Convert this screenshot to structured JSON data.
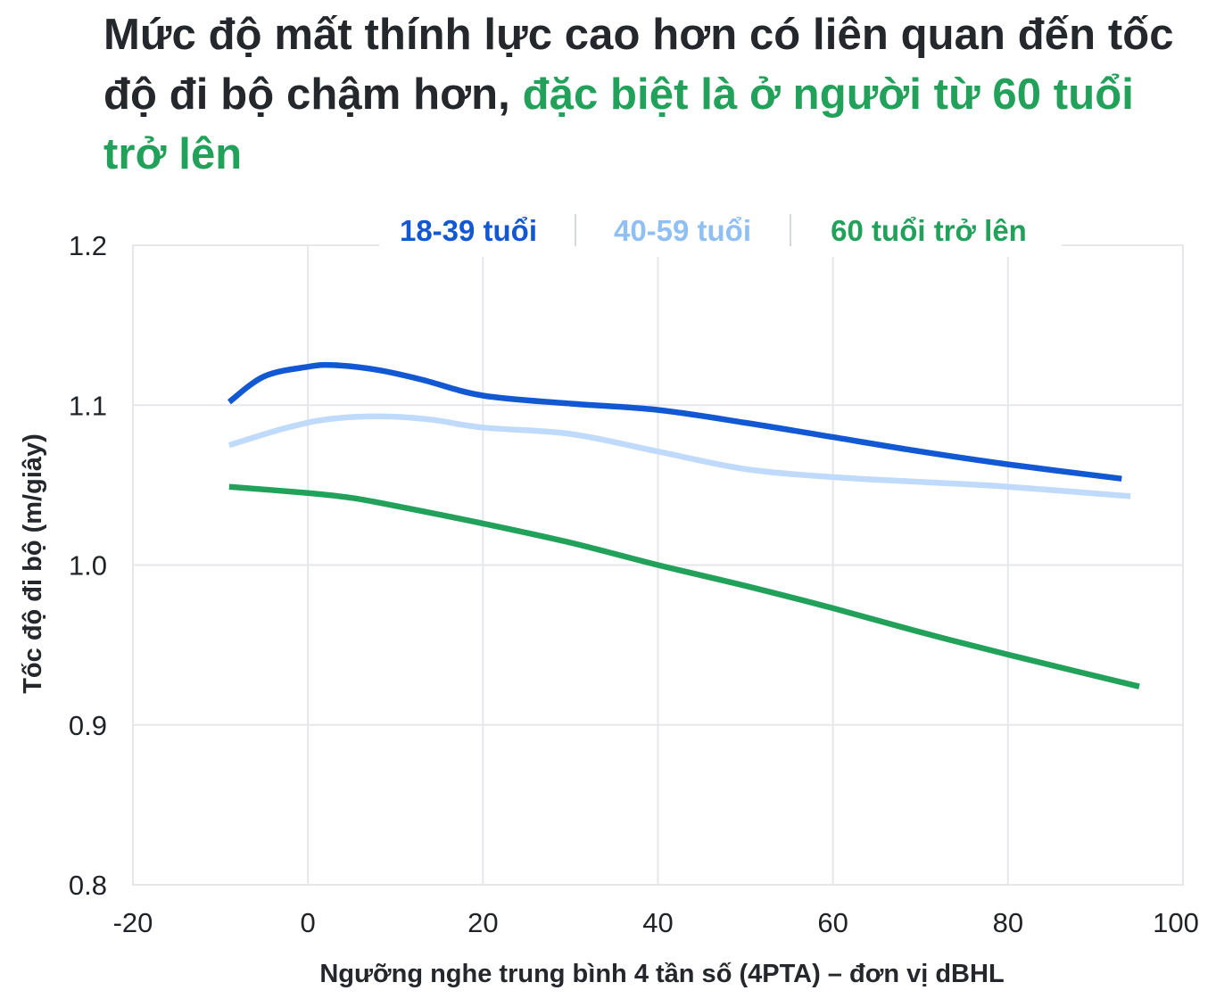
{
  "title": {
    "main": "Mức độ mất thính lực cao hơn có liên quan đến tốc độ đi bộ chậm hơn,",
    "highlight": "đặc biệt là ở người từ 60 tuổi trở lên"
  },
  "colors": {
    "title_text": "#24272c",
    "accent": "#21a159",
    "series_18_39": "#1358d3",
    "series_40_59": "#bfdafb",
    "series_60_plus": "#21a159",
    "legend_40_59_text": "#8fbff3",
    "grid": "#e5e7eb",
    "axis_text": "#1f2328"
  },
  "chart_data": {
    "type": "line",
    "xlabel": "Ngưỡng nghe trung bình 4 tần số (4PTA) – đơn vị dBHL",
    "ylabel": "Tốc độ đi bộ (m/giây)",
    "xlim": [
      -20,
      100
    ],
    "ylim": [
      0.8,
      1.2
    ],
    "x_ticks": [
      "-20",
      "0",
      "20",
      "40",
      "60",
      "80",
      "100"
    ],
    "y_ticks": [
      "0.8",
      "0.9",
      "1.0",
      "1.1",
      "1.2"
    ],
    "x_tick_values": [
      -20,
      0,
      20,
      40,
      60,
      80,
      100
    ],
    "y_tick_values": [
      0.8,
      0.9,
      1.0,
      1.1,
      1.2
    ],
    "grid": true,
    "legend_position": "top",
    "series": [
      {
        "name": "18-39 tuổi",
        "color": "#1358d3",
        "x": [
          -9,
          -5,
          0,
          3,
          8,
          13,
          20,
          30,
          40,
          50,
          60,
          70,
          80,
          93
        ],
        "y": [
          1.102,
          1.118,
          1.124,
          1.125,
          1.122,
          1.116,
          1.106,
          1.101,
          1.097,
          1.089,
          1.08,
          1.071,
          1.063,
          1.054
        ]
      },
      {
        "name": "40-59 tuổi",
        "color": "#bfdafb",
        "x": [
          -9,
          -3,
          2,
          8,
          14,
          20,
          30,
          40,
          50,
          60,
          70,
          80,
          94
        ],
        "y": [
          1.075,
          1.085,
          1.091,
          1.093,
          1.091,
          1.086,
          1.082,
          1.071,
          1.06,
          1.055,
          1.052,
          1.049,
          1.043
        ]
      },
      {
        "name": "60 tuổi trở lên",
        "color": "#21a159",
        "x": [
          -9,
          0,
          5,
          10,
          20,
          30,
          40,
          50,
          60,
          70,
          80,
          95
        ],
        "y": [
          1.049,
          1.045,
          1.042,
          1.037,
          1.026,
          1.014,
          1.0,
          0.987,
          0.973,
          0.958,
          0.944,
          0.924
        ]
      }
    ]
  }
}
